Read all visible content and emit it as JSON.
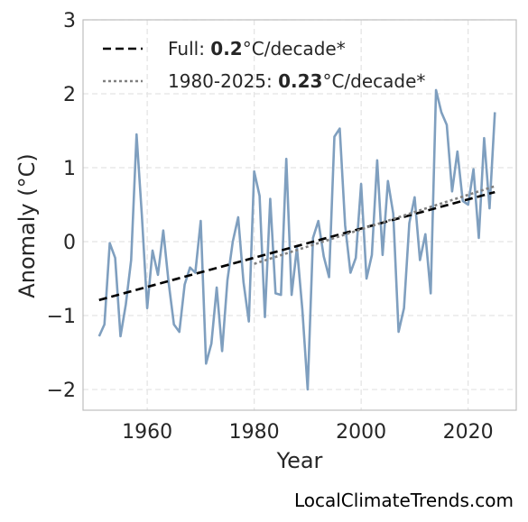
{
  "chart_data": {
    "type": "line",
    "xlabel": "Year",
    "ylabel": "Anomaly (°C)",
    "xlim": [
      1948,
      2029
    ],
    "ylim": [
      -2.28,
      3.0
    ],
    "xticks": [
      1960,
      1980,
      2000,
      2020
    ],
    "yticks": [
      -2,
      -1,
      0,
      1,
      2,
      3
    ],
    "ytick_labels": [
      "−2",
      "−1",
      "0",
      "1",
      "2",
      "3"
    ],
    "grid": true,
    "legend_placement": "top-left",
    "colors": {
      "series": "#7f9fbf",
      "full_trend": "#000000",
      "recent_trend": "#808080",
      "grid": "#e3e3e3",
      "axis": "#bfbfbf"
    },
    "series": [
      {
        "x": [
          1951,
          1952,
          1953,
          1954,
          1955,
          1956,
          1957,
          1958,
          1959,
          1960,
          1961,
          1962,
          1963,
          1964,
          1965,
          1966,
          1967,
          1968,
          1969,
          1970,
          1971,
          1972,
          1973,
          1974,
          1975,
          1976,
          1977,
          1978,
          1979,
          1980,
          1981,
          1982,
          1983,
          1984,
          1985,
          1986,
          1987,
          1988,
          1989,
          1990,
          1991,
          1992,
          1993,
          1994,
          1995,
          1996,
          1997,
          1998,
          1999,
          2000,
          2001,
          2002,
          2003,
          2004,
          2005,
          2006,
          2007,
          2008,
          2009,
          2010,
          2011,
          2012,
          2013,
          2014,
          2015,
          2016,
          2017,
          2018,
          2019,
          2020,
          2021,
          2022,
          2023,
          2024,
          2025
        ],
        "values": [
          -1.28,
          -1.12,
          -0.02,
          -0.22,
          -1.28,
          -0.85,
          -0.25,
          1.45,
          0.35,
          -0.9,
          -0.12,
          -0.45,
          0.15,
          -0.55,
          -1.12,
          -1.22,
          -0.58,
          -0.35,
          -0.42,
          0.28,
          -1.65,
          -1.38,
          -0.62,
          -1.48,
          -0.52,
          0.0,
          0.33,
          -0.55,
          -1.08,
          0.95,
          0.62,
          -1.02,
          0.58,
          -0.7,
          -0.72,
          1.12,
          -0.72,
          -0.08,
          -0.92,
          -2.0,
          0.05,
          0.28,
          -0.2,
          -0.48,
          1.42,
          1.53,
          0.22,
          -0.42,
          -0.22,
          0.78,
          -0.5,
          -0.18,
          1.1,
          -0.18,
          0.82,
          0.38,
          -1.22,
          -0.9,
          0.25,
          0.6,
          -0.25,
          0.1,
          -0.7,
          2.05,
          1.75,
          1.58,
          0.68,
          1.22,
          0.55,
          0.5,
          0.98,
          0.05,
          1.4,
          0.45,
          1.75
        ]
      }
    ],
    "trends": [
      {
        "label_prefix": "Full: ",
        "label_value": "0.2",
        "label_suffix": "°C/decade*",
        "x": [
          1951,
          2025
        ],
        "y": [
          -0.79,
          0.67
        ],
        "style": "dashed"
      },
      {
        "label_prefix": "1980-2025: ",
        "label_value": "0.23",
        "label_suffix": "°C/decade*",
        "x": [
          1980,
          2025
        ],
        "y": [
          -0.3,
          0.75
        ],
        "style": "dotted"
      }
    ]
  },
  "watermark": "LocalClimateTrends.com"
}
